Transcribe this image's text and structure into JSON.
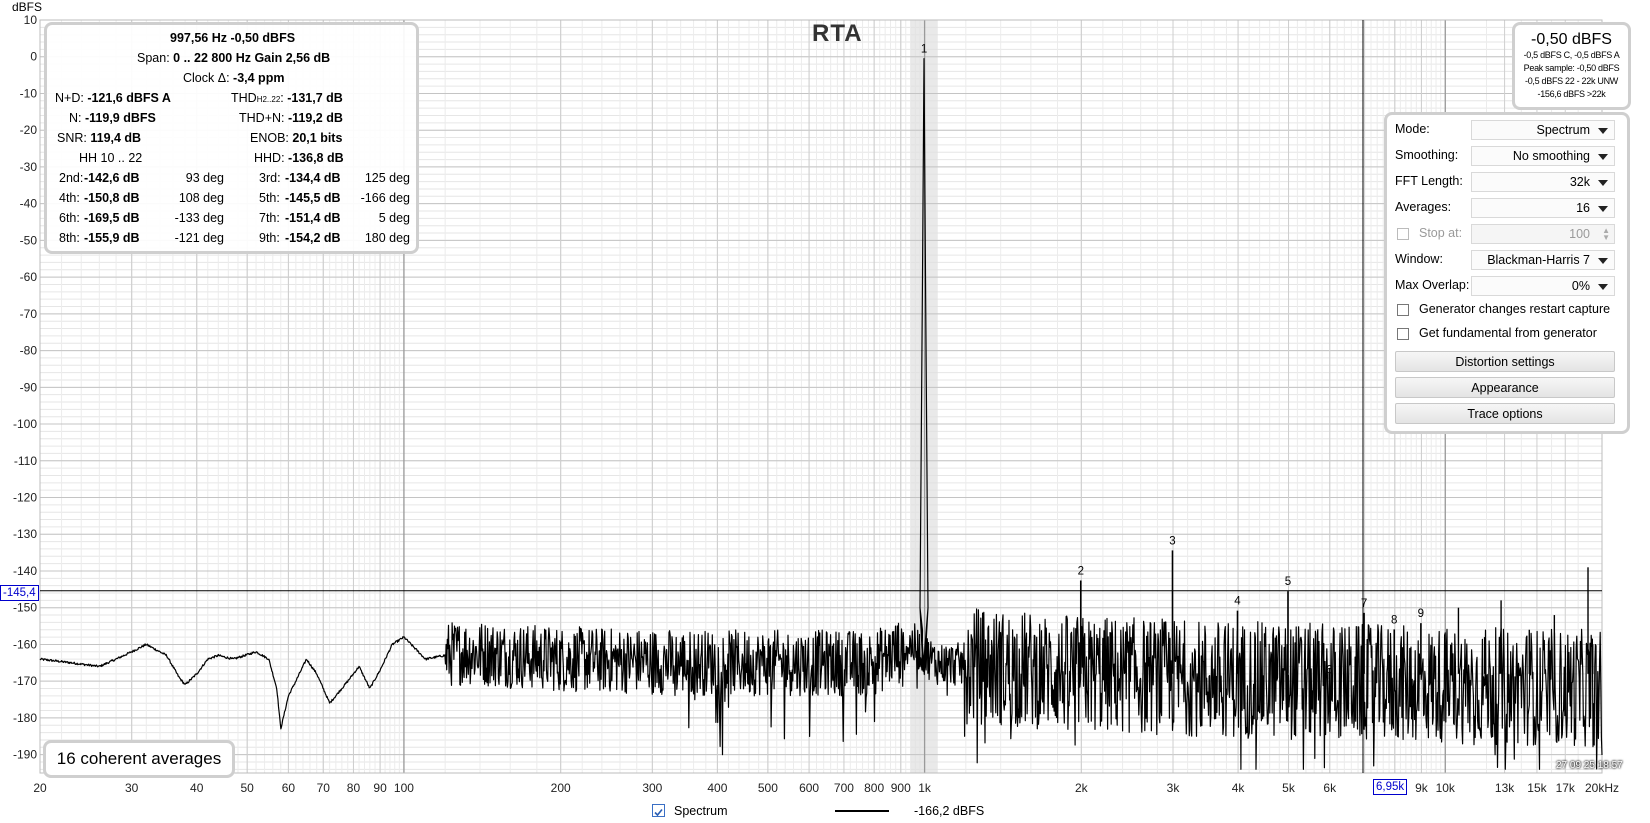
{
  "title": "RTA",
  "y_unit": "dBFS",
  "colors": {
    "trace": "#000000",
    "cursor": "#0000cc",
    "grid": "#cccccc",
    "box_border": "#cfcfcf"
  },
  "stats": {
    "line1": "997,56 Hz  -0,50 dBFS",
    "span_label": "Span:",
    "span_value": "0 .. 22 800 Hz   Gain 2,56 dB",
    "clock_label": "Clock Δ:",
    "clock_value": "-3,4 ppm",
    "nd_label": "N+D:",
    "nd_value": "-121,6 dBFS A",
    "thd_label": "THD",
    "thd_sub": "H2..22",
    "thd_value": "-131,7 dB",
    "n_label": "N:",
    "n_value": "-119,9 dBFS",
    "thdn_label": "THD+N:",
    "thdn_value": "-119,2 dB",
    "snr_label": "SNR:",
    "snr_value": "119,4 dB",
    "enob_label": "ENOB:",
    "enob_value": "20,1 bits",
    "hh_label": "HH 10 .. 22",
    "hhd_label": "HHD:",
    "hhd_value": "-136,8 dB",
    "harmonics": [
      {
        "l": "2nd:",
        "v": "-142,6 dB",
        "p": "93 deg",
        "l2": "3rd:",
        "v2": "-134,4 dB",
        "p2": "125 deg"
      },
      {
        "l": "4th:",
        "v": "-150,8 dB",
        "p": "108 deg",
        "l2": "5th:",
        "v2": "-145,5 dB",
        "p2": "-166 deg"
      },
      {
        "l": "6th:",
        "v": "-169,5 dB",
        "p": "-133 deg",
        "l2": "7th:",
        "v2": "-151,4 dB",
        "p2": "5 deg"
      },
      {
        "l": "8th:",
        "v": "-155,9 dB",
        "p": "-121 deg",
        "l2": "9th:",
        "v2": "-154,2 dB",
        "p2": "180 deg"
      }
    ]
  },
  "peak_box": {
    "main": "-0,50 dBFS",
    "lines": [
      "-0,5 dBFS C, -0,5 dBFS A",
      "Peak sample: -0,50 dBFS",
      "-0,5 dBFS 22 - 22k UNW",
      "-156,6 dBFS >22k"
    ]
  },
  "panel": {
    "mode_label": "Mode:",
    "mode_value": "Spectrum",
    "smoothing_label": "Smoothing:",
    "smoothing_value": "No smoothing",
    "fft_label": "FFT Length:",
    "fft_value": "32k",
    "averages_label": "Averages:",
    "averages_value": "16",
    "stopat_label": "Stop at:",
    "stopat_value": "100",
    "window_label": "Window:",
    "window_value": "Blackman-Harris 7",
    "overlap_label": "Max Overlap:",
    "overlap_value": "0%",
    "gen_restart_label": "Generator changes restart capture",
    "gen_fund_label": "Get fundamental from generator",
    "distortion_btn": "Distortion settings",
    "appearance_btn": "Appearance",
    "trace_btn": "Trace options"
  },
  "averages_badge": "16 coherent averages",
  "legend": {
    "name": "Spectrum",
    "value": "-166,2 dBFS"
  },
  "cursor": {
    "y_readout": "-145,4",
    "x_readout": "6,95k"
  },
  "timestamp": "27 09 25 18:57",
  "chart_data": {
    "type": "line",
    "title": "RTA",
    "ylabel": "dBFS",
    "xlabel": "",
    "x_scale": "log",
    "xlim": [
      20,
      20000
    ],
    "ylim": [
      -195,
      10
    ],
    "grid": true,
    "y_ticks": [
      10,
      0,
      -10,
      -20,
      -30,
      -40,
      -50,
      -60,
      -70,
      -80,
      -90,
      -100,
      -110,
      -120,
      -130,
      -140,
      -150,
      -160,
      -170,
      -180,
      -190
    ],
    "x_ticks": [
      {
        "v": 20,
        "t": "20"
      },
      {
        "v": 30,
        "t": "30"
      },
      {
        "v": 40,
        "t": "40"
      },
      {
        "v": 50,
        "t": "50"
      },
      {
        "v": 60,
        "t": "60"
      },
      {
        "v": 70,
        "t": "70"
      },
      {
        "v": 80,
        "t": "80"
      },
      {
        "v": 90,
        "t": "90"
      },
      {
        "v": 100,
        "t": "100"
      },
      {
        "v": 200,
        "t": "200"
      },
      {
        "v": 300,
        "t": "300"
      },
      {
        "v": 400,
        "t": "400"
      },
      {
        "v": 500,
        "t": "500"
      },
      {
        "v": 600,
        "t": "600"
      },
      {
        "v": 700,
        "t": "700"
      },
      {
        "v": 800,
        "t": "800"
      },
      {
        "v": 900,
        "t": "900"
      },
      {
        "v": 1000,
        "t": "1k"
      },
      {
        "v": 2000,
        "t": "2k"
      },
      {
        "v": 3000,
        "t": "3k"
      },
      {
        "v": 4000,
        "t": "4k"
      },
      {
        "v": 5000,
        "t": "5k"
      },
      {
        "v": 6000,
        "t": "6k"
      },
      {
        "v": 8000,
        "t": "8k"
      },
      {
        "v": 9000,
        "t": "9k"
      },
      {
        "v": 10000,
        "t": "10k"
      },
      {
        "v": 13000,
        "t": "13k"
      },
      {
        "v": 15000,
        "t": "15k"
      },
      {
        "v": 17000,
        "t": "17k"
      },
      {
        "v": 20000,
        "t": "20kHz"
      }
    ],
    "harmonic_markers": [
      {
        "n": "1",
        "f": 997.56,
        "db": -0.5
      },
      {
        "n": "2",
        "f": 1995,
        "db": -142.6
      },
      {
        "n": "3",
        "f": 2993,
        "db": -134.4
      },
      {
        "n": "4",
        "f": 3990,
        "db": -150.8
      },
      {
        "n": "5",
        "f": 4988,
        "db": -145.5
      },
      {
        "n": "6",
        "f": 5985,
        "db": -169.5
      },
      {
        "n": "7",
        "f": 6983,
        "db": -151.4
      },
      {
        "n": "8",
        "f": 7980,
        "db": -155.9
      },
      {
        "n": "9",
        "f": 8978,
        "db": -154.2
      }
    ],
    "series": [
      {
        "name": "Spectrum",
        "noise_envelope": [
          [
            20,
            -164
          ],
          [
            23,
            -165
          ],
          [
            26,
            -166
          ],
          [
            28,
            -164
          ],
          [
            30,
            -162
          ],
          [
            32,
            -160
          ],
          [
            35,
            -163
          ],
          [
            37,
            -169
          ],
          [
            38,
            -171
          ],
          [
            40,
            -168
          ],
          [
            42,
            -164
          ],
          [
            44,
            -163
          ],
          [
            47,
            -164
          ],
          [
            52,
            -162
          ],
          [
            55,
            -164
          ],
          [
            57,
            -172
          ],
          [
            58,
            -183
          ],
          [
            60,
            -174
          ],
          [
            62,
            -170
          ],
          [
            65,
            -164
          ],
          [
            68,
            -168
          ],
          [
            72,
            -176
          ],
          [
            78,
            -170
          ],
          [
            82,
            -166
          ],
          [
            86,
            -172
          ],
          [
            90,
            -167
          ],
          [
            95,
            -160
          ],
          [
            100,
            -158
          ],
          [
            110,
            -164
          ],
          [
            130,
            -162
          ],
          [
            200,
            -164
          ],
          [
            400,
            -165
          ],
          [
            800,
            -165
          ],
          [
            950,
            -160
          ],
          [
            1050,
            -165
          ],
          [
            2000,
            -168
          ],
          [
            5000,
            -170
          ],
          [
            10000,
            -171
          ],
          [
            20000,
            -172
          ]
        ]
      }
    ]
  }
}
